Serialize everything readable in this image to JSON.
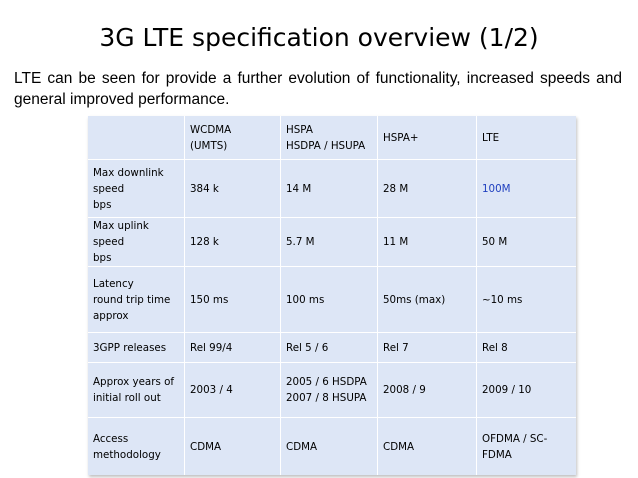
{
  "slide": {
    "title": "3G LTE specification overview (1/2)",
    "intro": "LTE can be seen for provide a further evolution of functionality, increased speeds and general improved performance."
  },
  "table": {
    "header": [
      "",
      "WCDMA\n(UMTS)",
      "HSPA\nHSDPA / HSUPA",
      "HSPA+",
      "LTE"
    ],
    "rows": [
      {
        "label": "Max downlink\nspeed\nbps",
        "cells": [
          "384 k",
          "14 M",
          "28 M",
          "100M"
        ]
      },
      {
        "label": "Max uplink speed\nbps",
        "cells": [
          "128 k",
          "5.7 M",
          "11 M",
          "50 M"
        ]
      },
      {
        "label": "Latency\nround trip time\napprox",
        "cells": [
          "150 ms",
          "100 ms",
          "50ms (max)",
          "~10 ms"
        ]
      },
      {
        "label": "3GPP releases",
        "cells": [
          "Rel 99/4",
          "Rel 5 / 6",
          "Rel 7",
          "Rel 8"
        ]
      },
      {
        "label": "Approx years of\ninitial roll out",
        "cells": [
          "2003 / 4",
          "2005 / 6 HSDPA\n2007 / 8 HSUPA",
          "2008 / 9",
          "2009 / 10"
        ]
      },
      {
        "label": "Access\nmethodology",
        "cells": [
          "CDMA",
          "CDMA",
          "CDMA",
          "OFDMA / SC-\nFDMA"
        ]
      }
    ]
  },
  "colors": {
    "cell_fill": "#dde6f6",
    "highlight_text": "#1f3fbf"
  }
}
